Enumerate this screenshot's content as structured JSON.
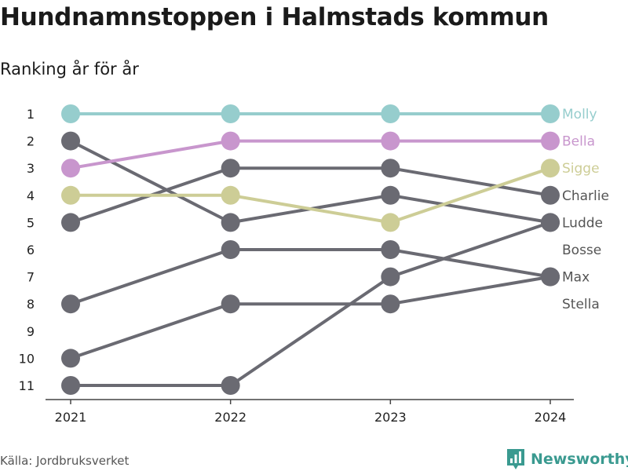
{
  "chart_data": {
    "type": "line",
    "title": "Hundnamnstoppen i Halmstads kommun",
    "subtitle": "Ranking år för år",
    "x": [
      "2021",
      "2022",
      "2023",
      "2024"
    ],
    "y_ticks": [
      "1",
      "2",
      "3",
      "4",
      "5",
      "6",
      "7",
      "8",
      "9",
      "10",
      "11"
    ],
    "ylim": [
      1,
      11
    ],
    "y_inverted": true,
    "grid": false,
    "series": [
      {
        "name": "Molly",
        "values": [
          1,
          1,
          1,
          1
        ],
        "color": "#96cdcd",
        "highlight": true
      },
      {
        "name": "Bella",
        "values": [
          3,
          2,
          2,
          2
        ],
        "color": "#c896cd",
        "highlight": true
      },
      {
        "name": "Sigge",
        "values": [
          4,
          4,
          5,
          3
        ],
        "color": "#cdcd96",
        "highlight": true
      },
      {
        "name": "Charlie",
        "values": [
          5,
          3,
          3,
          4
        ],
        "color": "#6a6a72",
        "highlight": false
      },
      {
        "name": "Ludde",
        "values": [
          11,
          11,
          7,
          5
        ],
        "color": "#6a6a72",
        "highlight": false
      },
      {
        "name": "Bosse",
        "values": [
          2,
          5,
          4,
          5
        ],
        "color": "#6a6a72",
        "highlight": false
      },
      {
        "name": "Max",
        "values": [
          8,
          6,
          6,
          7
        ],
        "color": "#6a6a72",
        "highlight": false
      },
      {
        "name": "Stella",
        "values": [
          10,
          8,
          8,
          7
        ],
        "color": "#6a6a72",
        "highlight": false
      }
    ],
    "end_labels": [
      {
        "text": "Molly",
        "rank": 1,
        "color": "#96cdcd"
      },
      {
        "text": "Bella",
        "rank": 2,
        "color": "#c896cd"
      },
      {
        "text": "Sigge",
        "rank": 3,
        "color": "#cdcd96"
      },
      {
        "text": "Charlie",
        "rank": 4,
        "color": "#555555"
      },
      {
        "text": "Ludde",
        "rank": 5,
        "color": "#555555"
      },
      {
        "text": "Bosse",
        "rank": 6,
        "color": "#555555"
      },
      {
        "text": "Max",
        "rank": 7,
        "color": "#555555"
      },
      {
        "text": "Stella",
        "rank": 8,
        "color": "#555555"
      }
    ]
  },
  "footer": {
    "source": "Källa: Jordbruksverket",
    "brand": "Newsworthy",
    "brand_color": "#3a9a90",
    "brand_icon": "bar-chart-logo-icon"
  }
}
